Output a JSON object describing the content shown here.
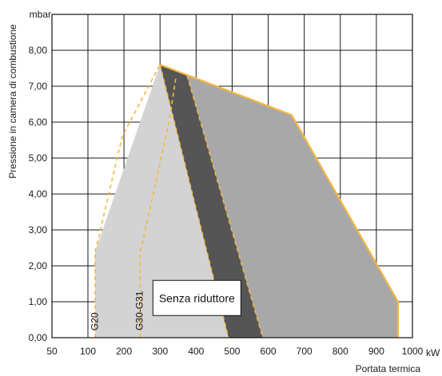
{
  "chart_data": {
    "type": "area",
    "title": "",
    "xlabel": "Portata termica",
    "ylabel": "Pressione in camera di combustione",
    "x_unit": "kW",
    "y_unit": "mbar",
    "xlim": [
      50,
      1000
    ],
    "ylim": [
      0,
      9
    ],
    "x_ticks": [
      50,
      100,
      200,
      300,
      400,
      500,
      600,
      700,
      800,
      900,
      1000
    ],
    "y_ticks": [
      0,
      1,
      2,
      3,
      4,
      5,
      6,
      7,
      8
    ],
    "x_tick_labels": [
      "50",
      "100",
      "200",
      "300",
      "400",
      "500",
      "600",
      "700",
      "800",
      "900",
      "1000"
    ],
    "y_tick_labels": [
      "0,00",
      "1,00",
      "2,00",
      "3,00",
      "4,00",
      "5,00",
      "6,00",
      "7,00",
      "8,00"
    ],
    "grid": true,
    "series": [
      {
        "points": [
          [
            120,
            0
          ],
          [
            120,
            2.4
          ],
          [
            300,
            7.6
          ],
          [
            490,
            0
          ]
        ],
        "fill": "#d3d3d3"
      },
      {
        "points": [
          [
            300,
            7.6
          ],
          [
            490,
            0
          ],
          [
            585,
            0
          ],
          [
            375,
            7.3
          ]
        ],
        "fill": "#555555"
      },
      {
        "name": "Senza riduttore",
        "points": [
          [
            375,
            7.3
          ],
          [
            300,
            7.6
          ],
          [
            665,
            6.2
          ],
          [
            960,
            1.0
          ],
          [
            960,
            0
          ],
          [
            585,
            0
          ]
        ],
        "fill": "#a8a8a8"
      }
    ],
    "outline": {
      "points": [
        [
          300,
          7.6
        ],
        [
          665,
          6.2
        ],
        [
          960,
          1.0
        ],
        [
          960,
          0
        ]
      ],
      "color": "#f5b841"
    },
    "dashed_curves": [
      {
        "name": "G20",
        "points": [
          [
            120,
            0
          ],
          [
            120,
            2.4
          ],
          [
            130,
            2.8
          ],
          [
            195,
            5.6
          ],
          [
            300,
            7.6
          ]
        ]
      },
      {
        "name": "G30-G31",
        "points": [
          [
            245,
            0
          ],
          [
            245,
            2.4
          ],
          [
            255,
            2.8
          ],
          [
            325,
            6.0
          ],
          [
            345,
            7.3
          ]
        ]
      },
      {
        "points": [
          [
            375,
            7.3
          ],
          [
            585,
            0
          ]
        ]
      },
      {
        "points": [
          [
            300,
            7.6
          ],
          [
            490,
            0
          ]
        ]
      }
    ],
    "colors": {
      "outline": "#f5b841",
      "grid": "#1a1a1a",
      "light_gray": "#d3d3d3",
      "dark_band": "#555555",
      "medium_gray": "#a8a8a8"
    },
    "annotation": "Senza riduttore",
    "curve_labels": [
      "G20",
      "G30-G31"
    ]
  }
}
